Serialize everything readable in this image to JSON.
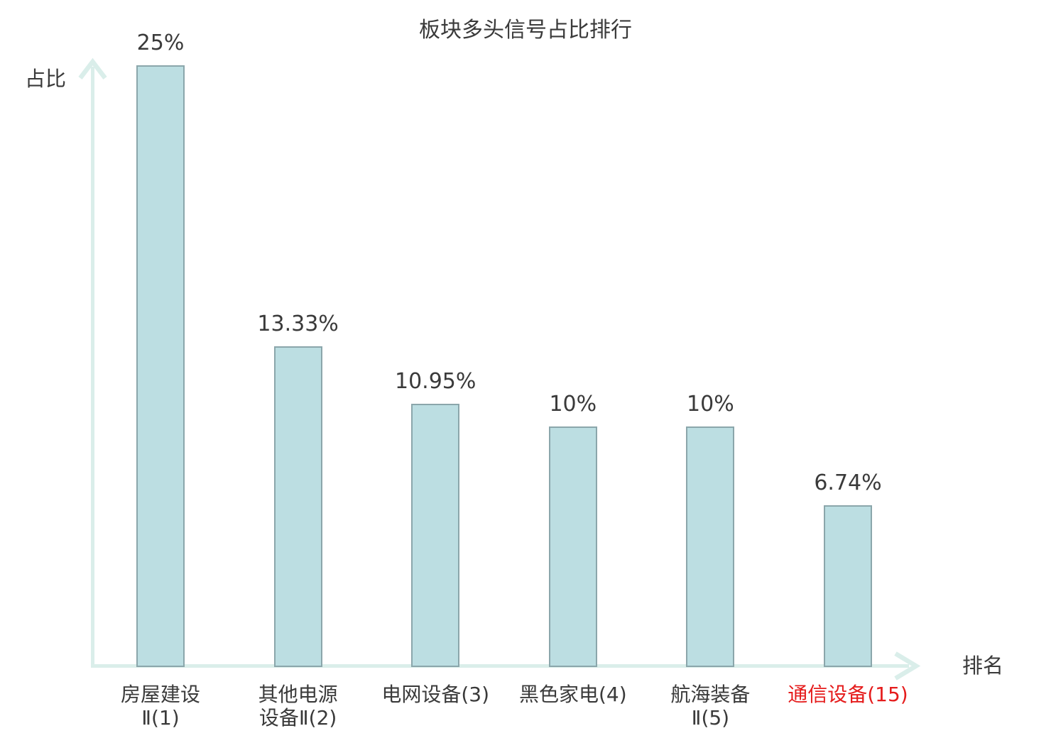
{
  "chart_data": {
    "type": "bar",
    "title": "板块多头信号占比排行",
    "xlabel": "排名",
    "ylabel": "占比",
    "categories": [
      "房屋建设\nⅡ(1)",
      "其他电源\n设备Ⅱ(2)",
      "电网设备(3)",
      "黑色家电(4)",
      "航海装备\nⅡ(5)",
      "通信设备(15)"
    ],
    "values": [
      25,
      13.33,
      10.95,
      10,
      10,
      6.74
    ],
    "value_labels": [
      "25%",
      "13.33%",
      "10.95%",
      "10%",
      "10%",
      "6.74%"
    ],
    "highlight_index": 5,
    "ylim": [
      0,
      25
    ],
    "grid": false,
    "legend": "none"
  },
  "colors": {
    "bar_fill": "#bcdee2",
    "bar_border": "#8ba6ab",
    "axis": "#daeeea",
    "text": "#3a3a3a",
    "highlight": "#e51c1c",
    "background": "#ffffff"
  }
}
